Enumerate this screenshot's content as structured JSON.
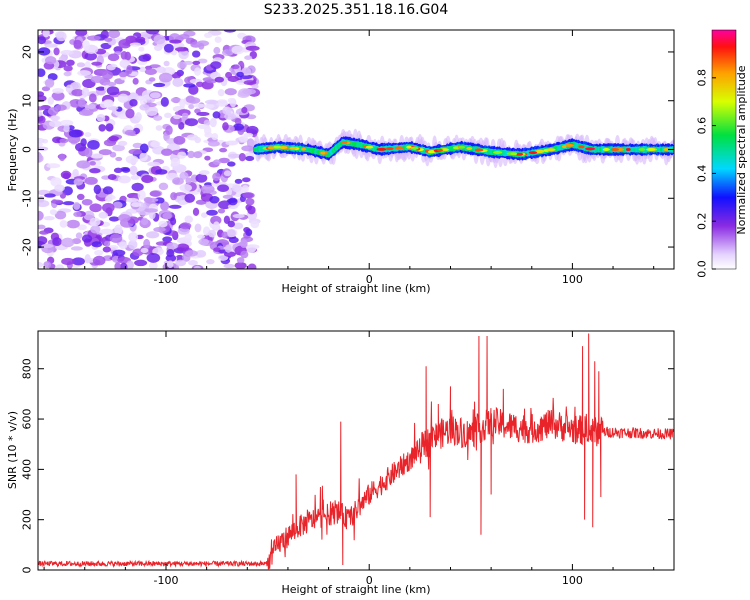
{
  "title": "S233.2025.351.18.16.G04",
  "colors": {
    "snr_line": "#e8242a",
    "frame": "#000000"
  },
  "chart_data": [
    {
      "type": "heatmap",
      "title": "S233.2025.351.18.16.G04",
      "xlabel": "Height of straight line (km)",
      "ylabel": "Frequency (Hz)",
      "xlim": [
        -163,
        150
      ],
      "ylim": [
        -24.5,
        24.5
      ],
      "x_ticks": [
        -100,
        0,
        100
      ],
      "x_tick_labels": [
        "-100",
        "0",
        "100"
      ],
      "y_ticks": [
        -20,
        -10,
        0,
        10,
        20
      ],
      "y_tick_labels": [
        "-20",
        "-10",
        "0",
        "10",
        "20"
      ],
      "noise_region_x": [
        -163,
        -56
      ],
      "signal_region_x": [
        -56,
        150
      ],
      "signal_freq_trace": [
        {
          "x": -56,
          "y": 0
        },
        {
          "x": -45,
          "y": 0.5
        },
        {
          "x": -30,
          "y": 0
        },
        {
          "x": -20,
          "y": -1
        },
        {
          "x": -13,
          "y": 1.5
        },
        {
          "x": -5,
          "y": 1
        },
        {
          "x": 5,
          "y": 0
        },
        {
          "x": 20,
          "y": 0.5
        },
        {
          "x": 30,
          "y": -0.5
        },
        {
          "x": 45,
          "y": 0.5
        },
        {
          "x": 60,
          "y": -0.5
        },
        {
          "x": 75,
          "y": -1
        },
        {
          "x": 90,
          "y": 0
        },
        {
          "x": 100,
          "y": 1
        },
        {
          "x": 110,
          "y": 0
        },
        {
          "x": 150,
          "y": 0
        }
      ],
      "colorbar": {
        "label": "Normalized spectral amplitude",
        "range": [
          0,
          1
        ],
        "ticks": [
          0.0,
          0.2,
          0.4,
          0.6,
          0.8
        ],
        "tick_labels": [
          "0.0",
          "0.2",
          "0.4",
          "0.6",
          "0.8"
        ]
      }
    },
    {
      "type": "line",
      "xlabel": "Height of straight line (km)",
      "ylabel": "SNR (10 * v/v)",
      "xlim": [
        -163,
        150
      ],
      "ylim": [
        0,
        950
      ],
      "x_ticks": [
        -100,
        0,
        100
      ],
      "x_tick_labels": [
        "-100",
        "0",
        "100"
      ],
      "y_ticks": [
        0,
        200,
        400,
        600,
        800
      ],
      "y_tick_labels": [
        "0",
        "200",
        "400",
        "600",
        "800"
      ],
      "series": [
        {
          "name": "SNR",
          "baseline_points": [
            {
              "x": -163,
              "y": 25
            },
            {
              "x": -50,
              "y": 25
            },
            {
              "x": -45,
              "y": 100
            },
            {
              "x": -35,
              "y": 170
            },
            {
              "x": -25,
              "y": 210
            },
            {
              "x": -15,
              "y": 230
            },
            {
              "x": -10,
              "y": 200
            },
            {
              "x": -5,
              "y": 250
            },
            {
              "x": 0,
              "y": 300
            },
            {
              "x": 10,
              "y": 370
            },
            {
              "x": 20,
              "y": 440
            },
            {
              "x": 30,
              "y": 520
            },
            {
              "x": 40,
              "y": 560
            },
            {
              "x": 50,
              "y": 540
            },
            {
              "x": 60,
              "y": 590
            },
            {
              "x": 70,
              "y": 570
            },
            {
              "x": 80,
              "y": 560
            },
            {
              "x": 90,
              "y": 580
            },
            {
              "x": 100,
              "y": 560
            },
            {
              "x": 110,
              "y": 550
            },
            {
              "x": 150,
              "y": 540
            }
          ],
          "spikes": [
            {
              "x": -36,
              "y": 380
            },
            {
              "x": -24,
              "y": 330
            },
            {
              "x": -14,
              "y": 590
            },
            {
              "x": -13,
              "y": 20
            },
            {
              "x": 28,
              "y": 810
            },
            {
              "x": 30,
              "y": 210
            },
            {
              "x": 34,
              "y": 660
            },
            {
              "x": 40,
              "y": 730
            },
            {
              "x": 54,
              "y": 930
            },
            {
              "x": 55,
              "y": 140
            },
            {
              "x": 58,
              "y": 930
            },
            {
              "x": 60,
              "y": 300
            },
            {
              "x": 66,
              "y": 720
            },
            {
              "x": 97,
              "y": 650
            },
            {
              "x": 105,
              "y": 890
            },
            {
              "x": 106,
              "y": 200
            },
            {
              "x": 108,
              "y": 940
            },
            {
              "x": 110,
              "y": 170
            },
            {
              "x": 111,
              "y": 830
            },
            {
              "x": 113,
              "y": 790
            },
            {
              "x": 114,
              "y": 290
            }
          ]
        }
      ]
    }
  ]
}
